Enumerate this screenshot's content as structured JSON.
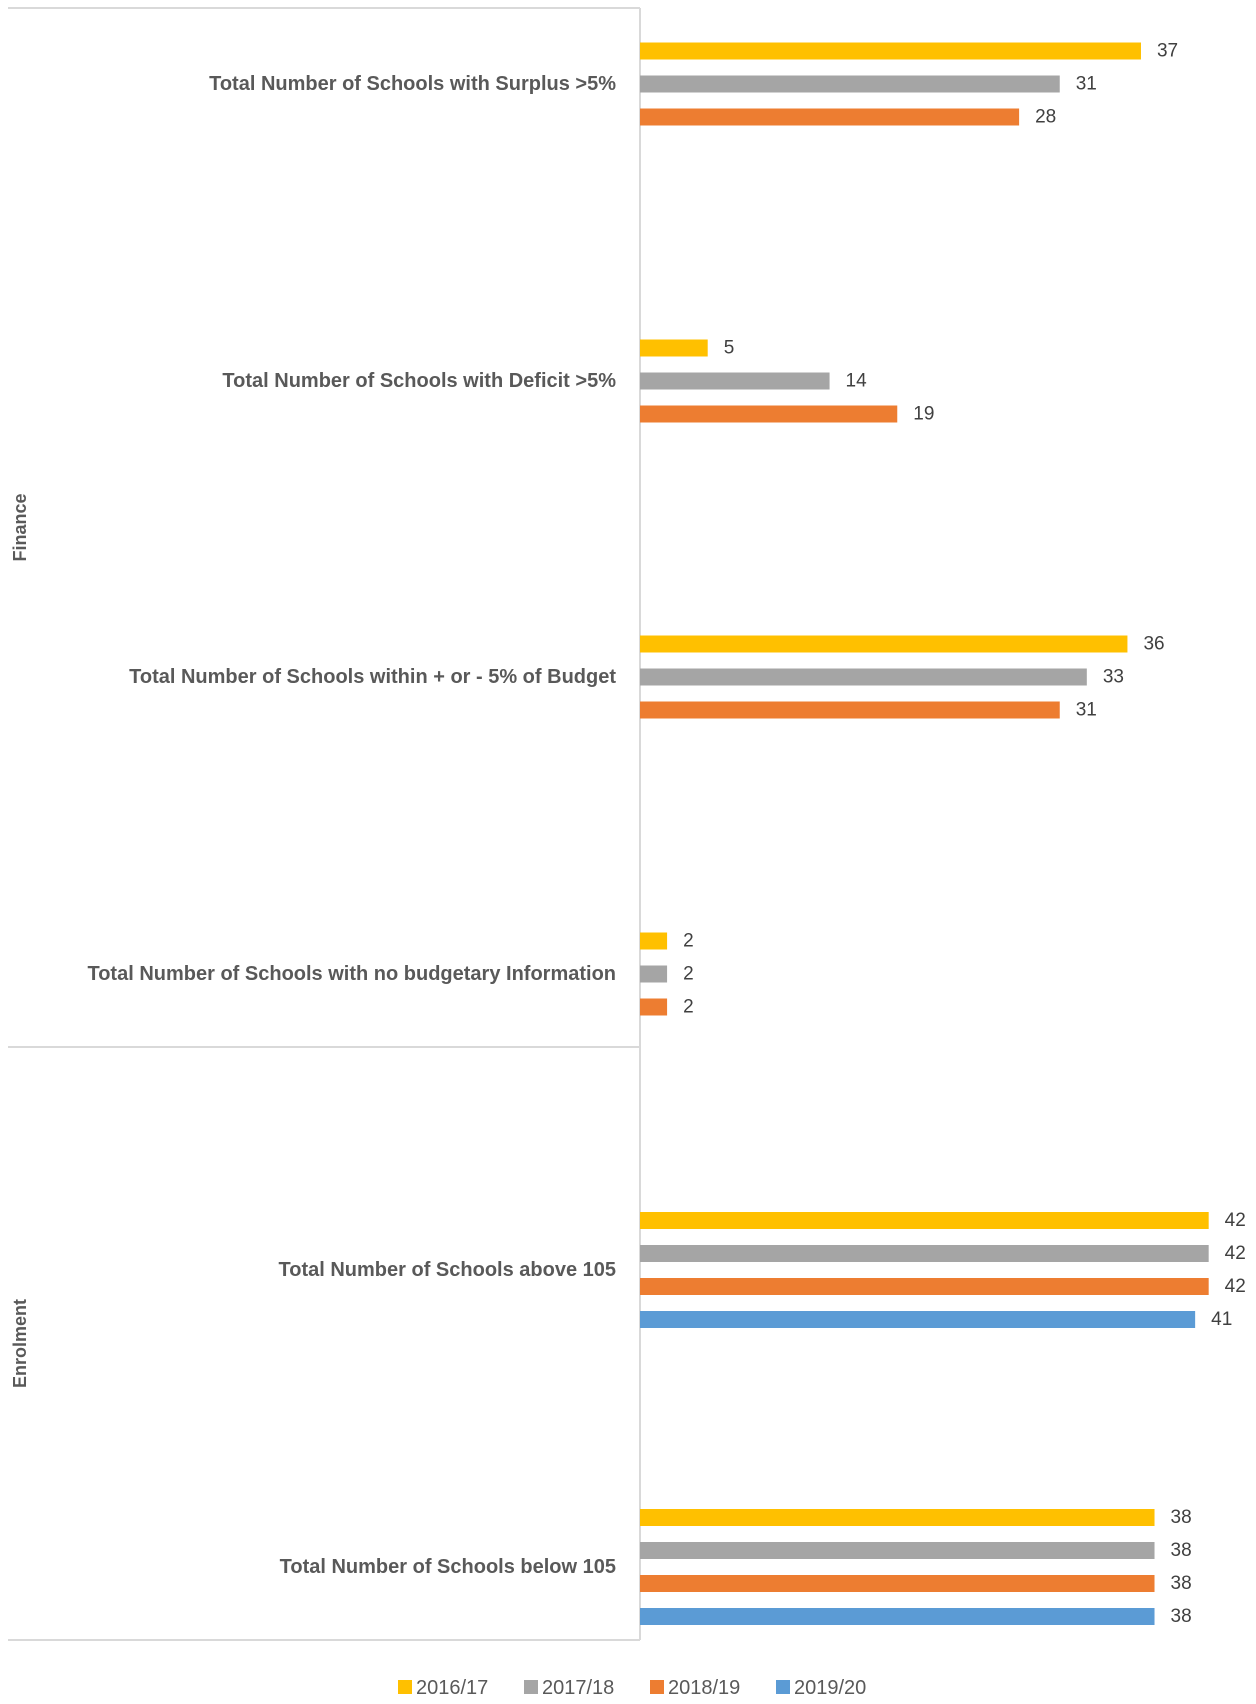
{
  "chart_data": {
    "type": "bar",
    "orientation": "horizontal",
    "groups": [
      {
        "name": "Finance",
        "categories": [
          "Total Number of Schools with Surplus >5%",
          "Total Number of Schools with Deficit >5%",
          "Total Number of Schools within + or - 5% of Budget",
          "Total Number of Schools with no budgetary Information"
        ]
      },
      {
        "name": "Enrolment",
        "categories": [
          "Total Number of Schools above 105",
          "Total Number of Schools below 105"
        ]
      }
    ],
    "categories": [
      "Total Number of Schools with Surplus >5%",
      "Total Number of Schools with Deficit >5%",
      "Total Number of Schools within + or - 5% of Budget",
      "Total Number of Schools with no budgetary Information",
      "Total Number of Schools above 105",
      "Total Number of Schools below 105"
    ],
    "series": [
      {
        "name": "2016/17",
        "color": "#FFC000",
        "values": [
          37,
          5,
          36,
          2,
          42,
          38
        ]
      },
      {
        "name": "2017/18",
        "color": "#A5A5A5",
        "values": [
          31,
          14,
          33,
          2,
          42,
          38
        ]
      },
      {
        "name": "2018/19",
        "color": "#ED7D31",
        "values": [
          28,
          19,
          31,
          2,
          42,
          38
        ]
      },
      {
        "name": "2019/20",
        "color": "#5B9BD5",
        "values": [
          null,
          null,
          null,
          null,
          41,
          38
        ]
      }
    ],
    "xlim": [
      0,
      42
    ],
    "grid": false,
    "legend_position": "bottom",
    "data_labels": true
  }
}
